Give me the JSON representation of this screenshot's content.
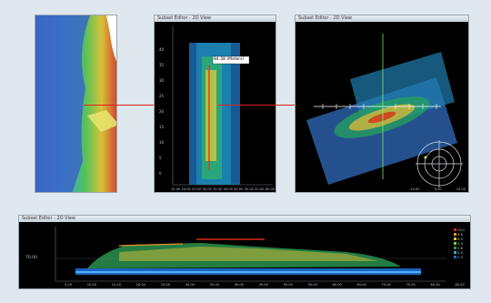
{
  "panels": {
    "subset_top_mid": {
      "title": "Subset Editor - 2D View"
    },
    "subset_top_right": {
      "title": "Subset Editor - 2D View"
    },
    "subset_bottom": {
      "title": "Subset Editor - 2D View"
    }
  },
  "mid_view": {
    "callout": "84.38 (Meters)",
    "x_ticks": [
      "15.00",
      "20.00",
      "25.00",
      "30.00",
      "35.00",
      "40.00",
      "45.00",
      "50.00",
      "55.00",
      "60.00"
    ],
    "y_ticks": [
      "40",
      "35",
      "30",
      "25",
      "20",
      "15",
      "10",
      "5",
      "0"
    ]
  },
  "right_view": {
    "x_ticks": [
      "-10.00",
      "0.00",
      "10.00"
    ]
  },
  "bottom_view": {
    "y_label": "70.00",
    "x_ticks": [
      "5.00",
      "10.00",
      "15.00",
      "20.00",
      "25.00",
      "30.00",
      "35.00",
      "40.00",
      "45.00",
      "50.00",
      "55.00",
      "60.00",
      "65.00",
      "70.00",
      "75.00",
      "80.00",
      "85.00"
    ],
    "legend": [
      "10.2",
      "8.6",
      "6.9",
      "5.3",
      "3.6",
      "2.0",
      "0.3"
    ]
  },
  "colors": {
    "arrow": "#e02020",
    "background": "#dfe8ef"
  }
}
